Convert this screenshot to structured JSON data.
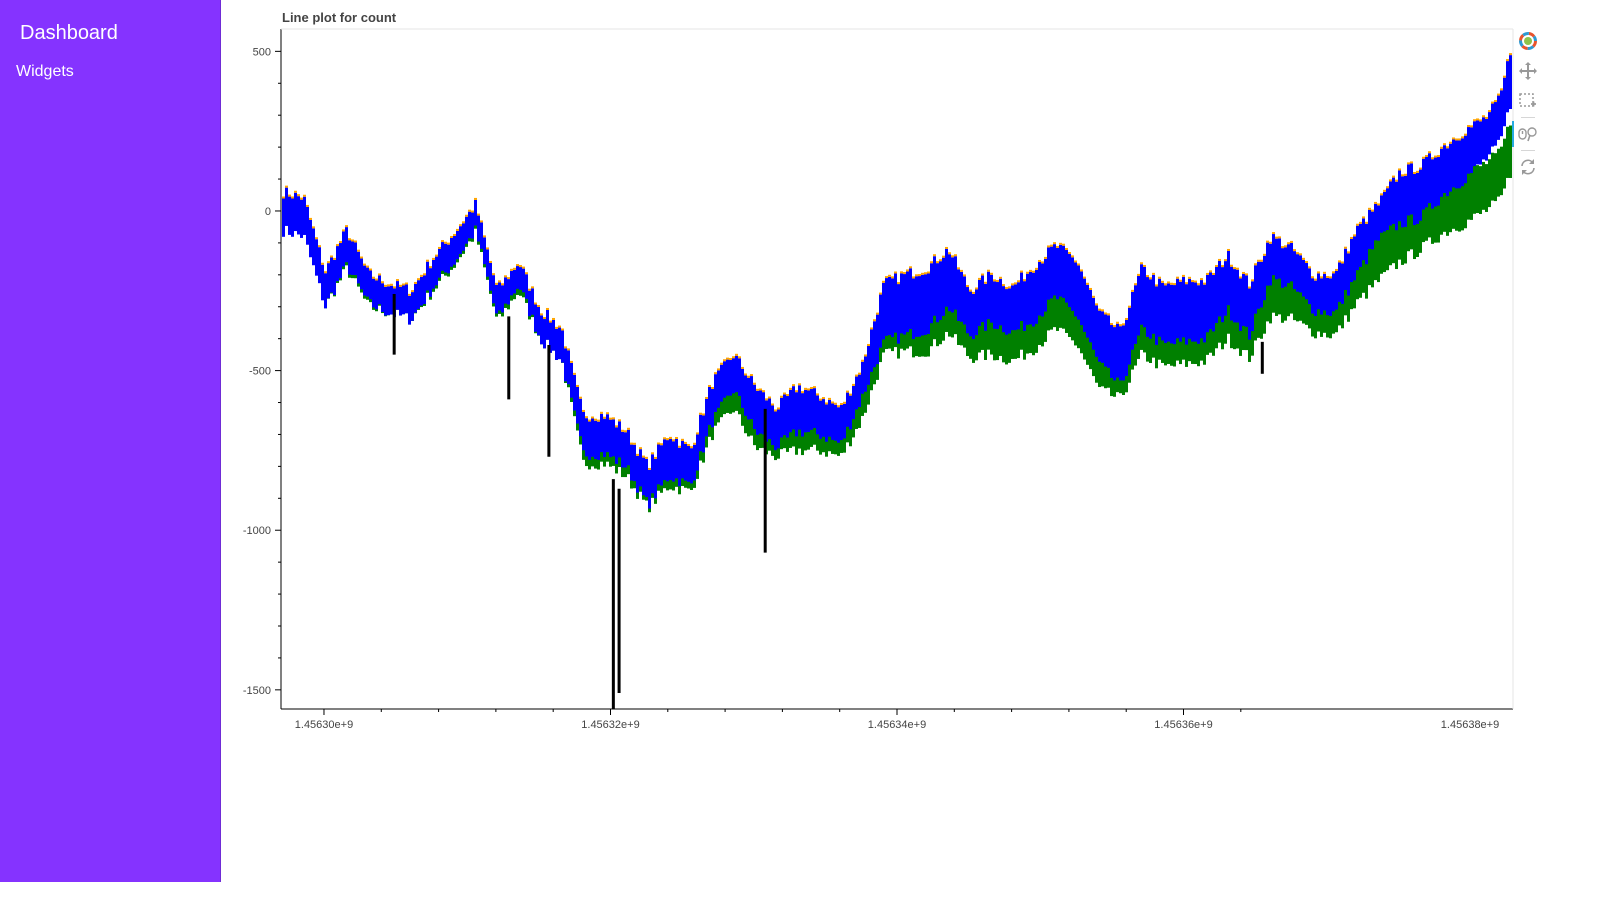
{
  "sidebar": {
    "title": "Dashboard",
    "nav": [
      {
        "label": "Widgets"
      }
    ]
  },
  "plot": {
    "title": "Line plot for count",
    "toolbar": [
      {
        "name": "bokeh-logo-icon",
        "active": false
      },
      {
        "name": "pan-tool-icon",
        "active": false
      },
      {
        "name": "box-zoom-tool-icon",
        "active": false
      },
      {
        "name": "wheel-zoom-tool-icon",
        "active": true
      },
      {
        "name": "reset-tool-icon",
        "active": false
      }
    ]
  },
  "colors": {
    "sidebar": "#8533ff",
    "upper_band": "#ffa500",
    "mid_band": "#0000ff",
    "low_band": "#008000",
    "spikes": "#000000"
  },
  "chart_data": {
    "type": "line",
    "title": "Line plot for count",
    "xlabel": "",
    "ylabel": "",
    "xlim": [
      1456297000.0,
      1456383000.0
    ],
    "ylim": [
      -1560,
      570
    ],
    "x_ticks": [
      1456300000.0,
      1456320000.0,
      1456340000.0,
      1456360000.0,
      1456380000.0
    ],
    "x_tick_labels": [
      "1.45630e+9",
      "1.45632e+9",
      "1.45634e+9",
      "1.45636e+9",
      "1.45638e+9"
    ],
    "y_ticks": [
      500,
      0,
      -500,
      -1000,
      -1500
    ],
    "y_tick_labels": [
      "500",
      "0",
      "-500",
      "-1000",
      "-1500"
    ],
    "grid": false,
    "series": [
      {
        "color": "#0000ff",
        "x": [
          1456297000.0,
          1456298500.0,
          1456300000.0,
          1456301500.0,
          1456303000.0,
          1456304500.0,
          1456306000.0,
          1456307500.0,
          1456309000.0,
          1456310500.0,
          1456312000.0,
          1456313500.0,
          1456315000.0,
          1456316500.0,
          1456318000.0,
          1456319500.0,
          1456321000.0,
          1456322500.0,
          1456324000.0,
          1456325500.0,
          1456327000.0,
          1456328500.0,
          1456330000.0,
          1456331500.0,
          1456333000.0,
          1456334500.0,
          1456336000.0,
          1456337500.0,
          1456339000.0,
          1456340500.0,
          1456342000.0,
          1456343500.0,
          1456345000.0,
          1456346500.0,
          1456348000.0,
          1456349500.0,
          1456351000.0,
          1456352500.0,
          1456354000.0,
          1456355500.0,
          1456357000.0,
          1456358500.0,
          1456360000.0,
          1456361500.0,
          1456363000.0,
          1456364500.0,
          1456366000.0,
          1456367500.0,
          1456369000.0,
          1456370500.0,
          1456372000.0,
          1456373500.0,
          1456375000.0,
          1456376500.0,
          1456378000.0,
          1456379500.0,
          1456381000.0,
          1456382000.0,
          1456383000.0
        ],
        "high": [
          60,
          40,
          -190,
          -60,
          -200,
          -230,
          -250,
          -150,
          -70,
          20,
          -250,
          -160,
          -310,
          -370,
          -640,
          -640,
          -690,
          -800,
          -700,
          -750,
          -540,
          -450,
          -550,
          -620,
          -550,
          -580,
          -620,
          -480,
          -230,
          -200,
          -180,
          -120,
          -250,
          -200,
          -240,
          -170,
          -110,
          -160,
          -320,
          -380,
          -180,
          -240,
          -220,
          -220,
          -140,
          -230,
          -80,
          -120,
          -200,
          -200,
          -60,
          20,
          120,
          140,
          200,
          250,
          290,
          350,
          560
        ],
        "low": [
          -60,
          -80,
          -300,
          -170,
          -290,
          -320,
          -340,
          -240,
          -160,
          -60,
          -340,
          -230,
          -400,
          -470,
          -760,
          -760,
          -800,
          -920,
          -830,
          -860,
          -660,
          -560,
          -690,
          -740,
          -690,
          -700,
          -730,
          -580,
          -410,
          -390,
          -370,
          -300,
          -390,
          -350,
          -380,
          -340,
          -270,
          -330,
          -480,
          -550,
          -370,
          -420,
          -410,
          -400,
          -310,
          -390,
          -210,
          -240,
          -310,
          -320,
          -200,
          -90,
          -40,
          -20,
          50,
          100,
          160,
          210,
          380
        ]
      },
      {
        "color": "#008000",
        "x": [
          1456297000.0,
          1456298500.0,
          1456300000.0,
          1456301500.0,
          1456303000.0,
          1456304500.0,
          1456306000.0,
          1456307500.0,
          1456309000.0,
          1456310500.0,
          1456312000.0,
          1456313500.0,
          1456315000.0,
          1456316500.0,
          1456318000.0,
          1456319500.0,
          1456321000.0,
          1456322500.0,
          1456324000.0,
          1456325500.0,
          1456327000.0,
          1456328500.0,
          1456330000.0,
          1456331500.0,
          1456333000.0,
          1456334500.0,
          1456336000.0,
          1456337500.0,
          1456339000.0,
          1456340500.0,
          1456342000.0,
          1456343500.0,
          1456345000.0,
          1456346500.0,
          1456348000.0,
          1456349500.0,
          1456351000.0,
          1456352500.0,
          1456354000.0,
          1456355500.0,
          1456357000.0,
          1456358500.0,
          1456360000.0,
          1456361500.0,
          1456363000.0,
          1456364500.0,
          1456366000.0,
          1456367500.0,
          1456369000.0,
          1456370500.0,
          1456372000.0,
          1456373500.0,
          1456375000.0,
          1456376500.0,
          1456378000.0,
          1456379500.0,
          1456381000.0,
          1456382000.0,
          1456383000.0
        ],
        "high": [
          40,
          20,
          -230,
          -100,
          -230,
          -260,
          -280,
          -180,
          -100,
          -10,
          -280,
          -190,
          -340,
          -400,
          -680,
          -680,
          -720,
          -840,
          -730,
          -780,
          -580,
          -490,
          -610,
          -670,
          -620,
          -640,
          -680,
          -540,
          -310,
          -300,
          -280,
          -220,
          -310,
          -290,
          -320,
          -270,
          -200,
          -260,
          -400,
          -470,
          -300,
          -360,
          -330,
          -320,
          -250,
          -320,
          -160,
          -190,
          -270,
          -280,
          -160,
          -60,
          -10,
          20,
          70,
          110,
          150,
          180,
          320
        ],
        "low": [
          -50,
          -70,
          -300,
          -180,
          -300,
          -320,
          -340,
          -250,
          -170,
          -70,
          -350,
          -250,
          -400,
          -470,
          -790,
          -790,
          -830,
          -930,
          -860,
          -880,
          -700,
          -620,
          -740,
          -770,
          -750,
          -750,
          -770,
          -650,
          -450,
          -440,
          -440,
          -380,
          -460,
          -450,
          -470,
          -430,
          -370,
          -420,
          -560,
          -590,
          -450,
          -490,
          -480,
          -470,
          -400,
          -460,
          -330,
          -340,
          -380,
          -390,
          -290,
          -220,
          -160,
          -120,
          -70,
          -40,
          0,
          30,
          150
        ]
      },
      {
        "color": "#000000",
        "x": [
          1456304900.0,
          1456312900.0,
          1456315700.0,
          1456320200.0,
          1456320600.0,
          1456330800.0,
          1456365500.0
        ],
        "high": [
          -260,
          -330,
          -420,
          -840,
          -870,
          -620,
          -410
        ],
        "low": [
          -450,
          -590,
          -770,
          -1560,
          -1510,
          -1070,
          -510
        ]
      }
    ]
  }
}
